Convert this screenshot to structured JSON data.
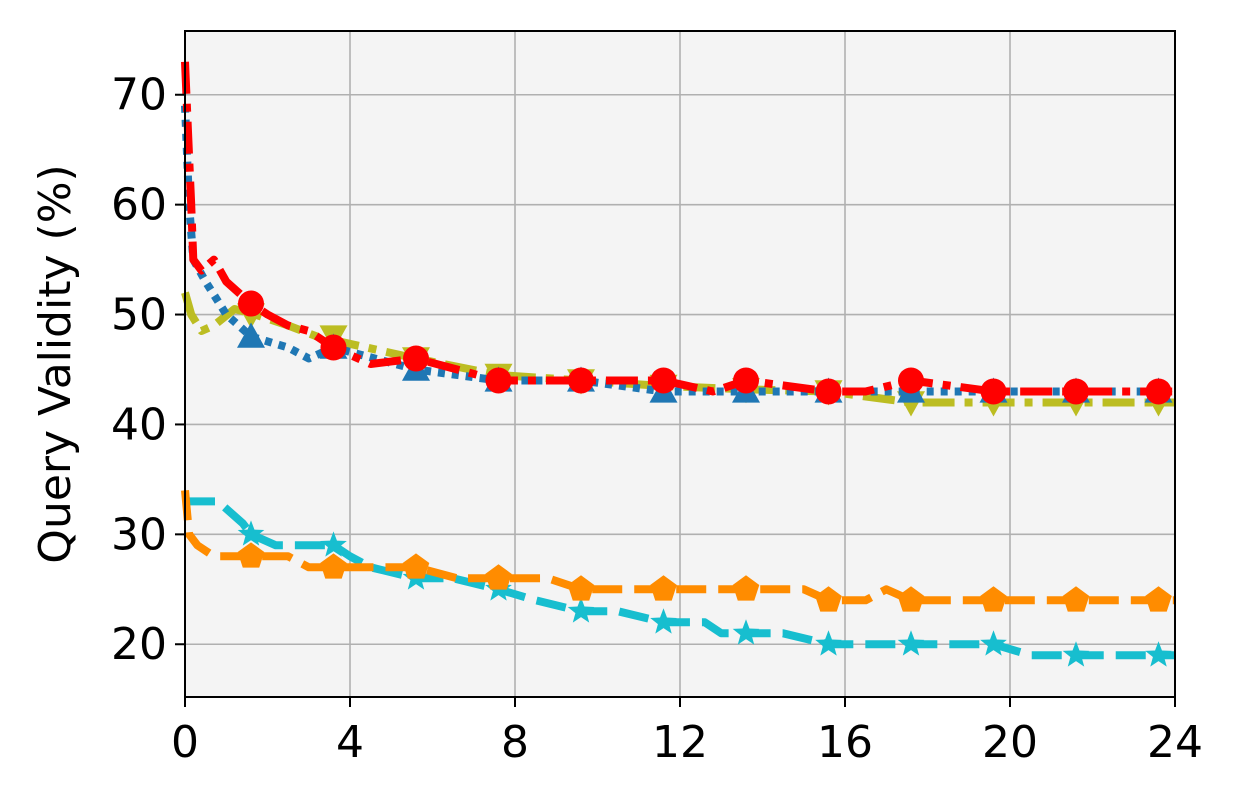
{
  "chart_data": {
    "type": "line",
    "title": "",
    "xlabel": "",
    "ylabel": "Query Validity (%)",
    "xlim": [
      0,
      24
    ],
    "ylim": [
      15.2,
      75.8
    ],
    "xticks": [
      0,
      4,
      8,
      12,
      16,
      20,
      24
    ],
    "xtick_labels": [
      "0",
      "4",
      "8",
      "12",
      "16",
      "20",
      "24"
    ],
    "yticks": [
      20,
      30,
      40,
      50,
      60,
      70
    ],
    "ytick_labels": [
      "20",
      "30",
      "40",
      "50",
      "60",
      "70"
    ],
    "grid": true,
    "plot_background": "#f4f4f4",
    "series": [
      {
        "color": "#bcbd22",
        "line_style": "dashdot",
        "marker": "triangle-down",
        "points": [
          [
            0,
            52
          ],
          [
            0.15,
            50
          ],
          [
            0.4,
            48.5
          ],
          [
            0.7,
            49
          ],
          [
            1.2,
            50.5
          ],
          [
            1.7,
            50
          ],
          [
            2.5,
            49
          ],
          [
            3.2,
            48
          ],
          [
            4.4,
            47
          ],
          [
            5.6,
            46
          ],
          [
            7.6,
            44.5
          ],
          [
            9.6,
            44
          ],
          [
            11.6,
            43.5
          ],
          [
            13.6,
            43.2
          ],
          [
            15.6,
            43
          ],
          [
            17.6,
            42
          ],
          [
            19.6,
            42
          ],
          [
            21.6,
            42
          ],
          [
            23.6,
            42
          ],
          [
            24,
            42
          ]
        ],
        "marker_x": [
          1.6,
          3.6,
          5.6,
          7.6,
          9.6,
          11.6,
          13.6,
          15.6,
          17.6,
          19.6,
          21.6,
          23.6
        ],
        "marker_y": [
          50,
          48,
          46,
          44.5,
          44,
          43.5,
          43.2,
          43,
          42,
          42,
          42,
          42
        ]
      },
      {
        "color": "#1f77b4",
        "line_style": "dotted",
        "marker": "triangle-up",
        "points": [
          [
            0,
            69
          ],
          [
            0.1,
            60
          ],
          [
            0.2,
            55
          ],
          [
            0.5,
            53
          ],
          [
            1.0,
            50
          ],
          [
            1.6,
            48
          ],
          [
            2.5,
            47
          ],
          [
            3.0,
            46
          ],
          [
            3.6,
            47
          ],
          [
            5.6,
            45
          ],
          [
            7.6,
            44
          ],
          [
            9.6,
            44
          ],
          [
            11.6,
            43
          ],
          [
            13.6,
            43
          ],
          [
            15.6,
            43
          ],
          [
            17.6,
            43
          ],
          [
            19.6,
            43
          ],
          [
            21.6,
            43
          ],
          [
            23.6,
            43
          ],
          [
            24,
            43
          ]
        ],
        "marker_x": [
          1.6,
          3.6,
          5.6,
          7.6,
          9.6,
          11.6,
          13.6,
          15.6,
          17.6,
          19.6,
          21.6,
          23.6
        ],
        "marker_y": [
          48,
          47,
          45,
          44,
          44,
          43,
          43,
          43,
          43,
          43,
          43,
          43
        ]
      },
      {
        "color": "#ff0000",
        "line_style": "dashdot",
        "marker": "circle",
        "points": [
          [
            0,
            73
          ],
          [
            0.08,
            66
          ],
          [
            0.15,
            60
          ],
          [
            0.2,
            55
          ],
          [
            0.4,
            54
          ],
          [
            0.7,
            55
          ],
          [
            1.0,
            53
          ],
          [
            1.3,
            52
          ],
          [
            1.6,
            51
          ],
          [
            2.0,
            50
          ],
          [
            2.5,
            49
          ],
          [
            3.0,
            48.5
          ],
          [
            3.6,
            47
          ],
          [
            4.5,
            45.5
          ],
          [
            5.6,
            46
          ],
          [
            6.6,
            45
          ],
          [
            7.6,
            44
          ],
          [
            9.6,
            44
          ],
          [
            11.6,
            44
          ],
          [
            12.8,
            43
          ],
          [
            13.6,
            44
          ],
          [
            15.6,
            43
          ],
          [
            16.5,
            43
          ],
          [
            17.6,
            44
          ],
          [
            19.6,
            43
          ],
          [
            21.6,
            43
          ],
          [
            23.6,
            43
          ],
          [
            24,
            43
          ]
        ],
        "marker_x": [
          1.6,
          3.6,
          5.6,
          7.6,
          9.6,
          11.6,
          13.6,
          15.6,
          17.6,
          19.6,
          21.6,
          23.6
        ],
        "marker_y": [
          51,
          47,
          46,
          44,
          44,
          44,
          44,
          43,
          44,
          43,
          43,
          43
        ]
      },
      {
        "color": "#17becf",
        "line_style": "dashed",
        "marker": "star",
        "points": [
          [
            0,
            33
          ],
          [
            0.2,
            33
          ],
          [
            0.8,
            33
          ],
          [
            1.4,
            31
          ],
          [
            1.6,
            30
          ],
          [
            2.2,
            29
          ],
          [
            3.0,
            29
          ],
          [
            3.6,
            29
          ],
          [
            4.0,
            28
          ],
          [
            4.5,
            27
          ],
          [
            5.6,
            26
          ],
          [
            6.5,
            26
          ],
          [
            7.6,
            25
          ],
          [
            8.5,
            24
          ],
          [
            9.6,
            23
          ],
          [
            10.5,
            23
          ],
          [
            11.6,
            22
          ],
          [
            12.6,
            22
          ],
          [
            13.0,
            21
          ],
          [
            13.6,
            21
          ],
          [
            14.5,
            21
          ],
          [
            15.6,
            20
          ],
          [
            17.6,
            20
          ],
          [
            19.6,
            20
          ],
          [
            20.5,
            19
          ],
          [
            21.6,
            19
          ],
          [
            23.6,
            19
          ],
          [
            24,
            19
          ]
        ],
        "marker_x": [
          1.6,
          3.6,
          5.6,
          7.6,
          9.6,
          11.6,
          13.6,
          15.6,
          17.6,
          19.6,
          21.6,
          23.6
        ],
        "marker_y": [
          30,
          29,
          26,
          25,
          23,
          22,
          21,
          20,
          20,
          20,
          19,
          19
        ]
      },
      {
        "color": "#ff8c00",
        "line_style": "dashed",
        "marker": "pentagon",
        "points": [
          [
            0,
            34
          ],
          [
            0.1,
            30
          ],
          [
            0.3,
            29
          ],
          [
            0.7,
            28
          ],
          [
            1.6,
            28
          ],
          [
            2.5,
            28
          ],
          [
            3.0,
            27
          ],
          [
            3.6,
            27
          ],
          [
            4.5,
            27
          ],
          [
            5.6,
            27
          ],
          [
            6.6,
            26
          ],
          [
            7.6,
            26
          ],
          [
            8.8,
            26
          ],
          [
            9.6,
            25
          ],
          [
            11.6,
            25
          ],
          [
            13.6,
            25
          ],
          [
            15.0,
            25
          ],
          [
            15.6,
            24
          ],
          [
            16.5,
            24
          ],
          [
            17.0,
            25
          ],
          [
            17.6,
            24
          ],
          [
            19.6,
            24
          ],
          [
            21.6,
            24
          ],
          [
            23.6,
            24
          ],
          [
            24,
            24
          ]
        ],
        "marker_x": [
          1.6,
          3.6,
          5.6,
          7.6,
          9.6,
          11.6,
          13.6,
          15.6,
          17.6,
          19.6,
          21.6,
          23.6
        ],
        "marker_y": [
          28,
          27,
          27,
          26,
          25,
          25,
          25,
          24,
          24,
          24,
          24,
          24
        ]
      }
    ]
  }
}
